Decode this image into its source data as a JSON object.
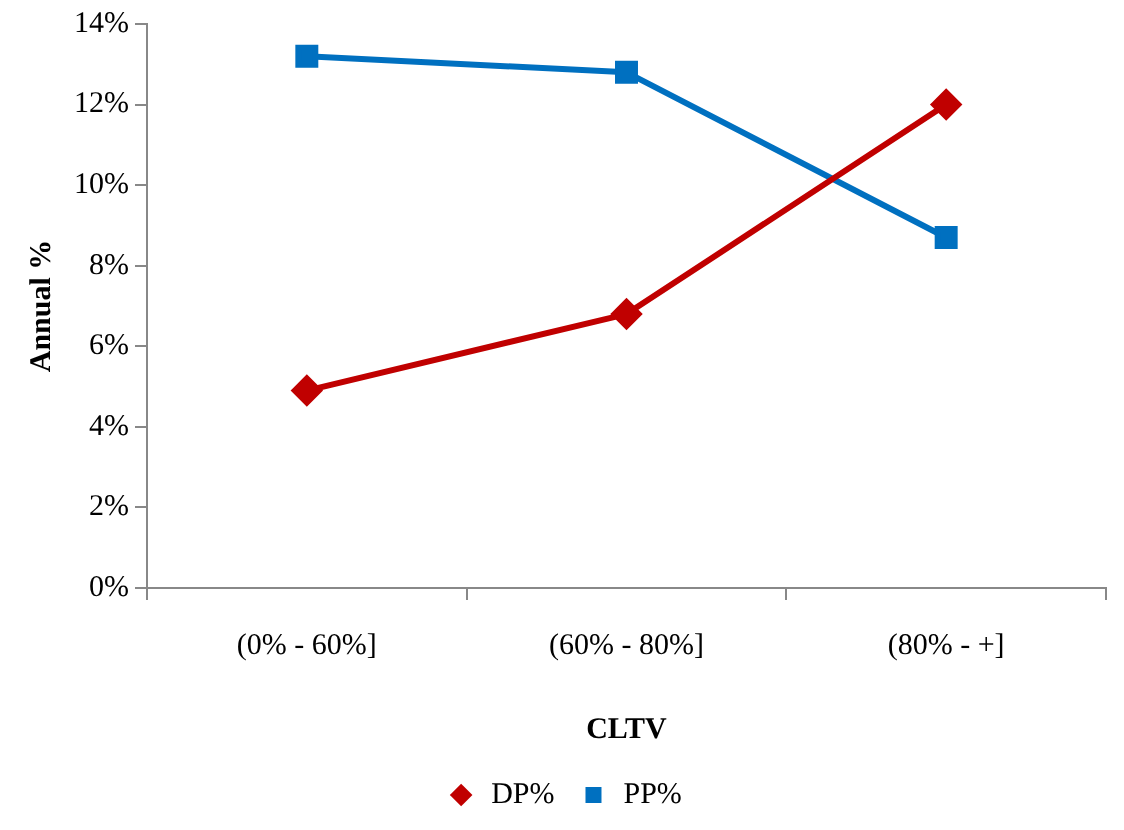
{
  "chart_data": {
    "type": "line",
    "xlabel": "CLTV",
    "ylabel": "Annual %",
    "categories": [
      "(0% - 60%]",
      "(60% - 80%]",
      "(80% - +]"
    ],
    "series": [
      {
        "name": "DP%",
        "color": "#c00000",
        "marker": "diamond",
        "values": [
          4.9,
          6.8,
          12.0
        ]
      },
      {
        "name": "PP%",
        "color": "#0070c0",
        "marker": "square",
        "values": [
          13.2,
          12.8,
          8.7
        ]
      }
    ],
    "ylim": [
      0,
      14
    ],
    "yticks": [
      {
        "value": 0,
        "label": "0%"
      },
      {
        "value": 2,
        "label": "2%"
      },
      {
        "value": 4,
        "label": "4%"
      },
      {
        "value": 6,
        "label": "6%"
      },
      {
        "value": 8,
        "label": "8%"
      },
      {
        "value": 10,
        "label": "10%"
      },
      {
        "value": 12,
        "label": "12%"
      },
      {
        "value": 14,
        "label": "14%"
      }
    ],
    "grid": false,
    "legend": "bottom",
    "line_style": "solid"
  }
}
